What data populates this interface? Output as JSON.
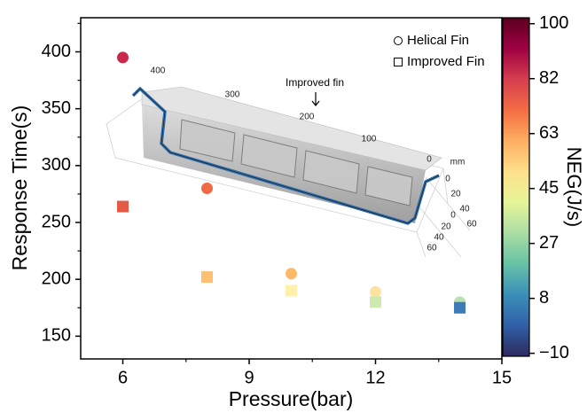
{
  "chart_data": {
    "type": "scatter",
    "xlabel": "Pressure(bar)",
    "ylabel": "Response Time(s)",
    "xlim": [
      5,
      15
    ],
    "ylim": [
      130,
      430
    ],
    "xticks": [
      6,
      9,
      12,
      15
    ],
    "xminorticks": [
      7.5,
      10.5,
      13.5
    ],
    "yticks": [
      150,
      200,
      250,
      300,
      350,
      400
    ],
    "yminorticks": [
      175,
      225,
      275,
      325,
      375,
      425
    ],
    "legend": "upper right",
    "series": [
      {
        "name": "Helical Fin",
        "marker": "circle",
        "x": [
          6,
          8,
          10,
          12,
          14
        ],
        "values": [
          395,
          280,
          205,
          189,
          180
        ],
        "colors": [
          "#c8294b",
          "#f06a44",
          "#fdb96a",
          "#fee3a0",
          "#b9dfb4"
        ]
      },
      {
        "name": "Improved Fin",
        "marker": "square",
        "x": [
          6,
          8,
          10,
          12,
          14
        ],
        "values": [
          264,
          202,
          190,
          180,
          175
        ],
        "colors": [
          "#e35a45",
          "#fdc070",
          "#fef0a8",
          "#cfeab0",
          "#3b7cb8"
        ]
      }
    ],
    "colorbar": {
      "label": "NEG(J/s)",
      "lim": [
        -11,
        102
      ],
      "ticks": [
        {
          "value": -10,
          "label": "−10"
        },
        {
          "value": 8.33,
          "label": "8"
        },
        {
          "value": 26.67,
          "label": "27"
        },
        45,
        {
          "value": 63.33,
          "label": "63"
        },
        {
          "value": 81.67,
          "label": "82"
        },
        100
      ],
      "colors": [
        "#2d2a5e",
        "#3060a8",
        "#3a8fb8",
        "#66c2a5",
        "#abdda4",
        "#e6f598",
        "#fee08b",
        "#fdae61",
        "#f46d43",
        "#d53e4f",
        "#9e0142",
        "#5a0020"
      ]
    },
    "inset": {
      "annotation": "Improved fin",
      "length_ticks": [
        400,
        300,
        200,
        100,
        0
      ],
      "unit": "mm",
      "depth_ticks": [
        0,
        20,
        40,
        60
      ],
      "height_ticks": [
        0,
        20,
        40,
        60
      ]
    }
  }
}
